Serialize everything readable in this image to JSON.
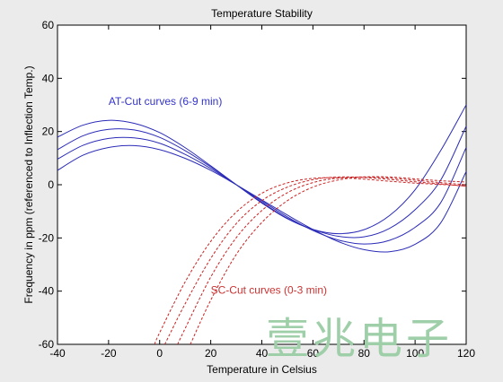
{
  "chart_data": {
    "type": "line",
    "title": "Temperature Stability",
    "xlabel": "Temperature in Celsius",
    "ylabel": "Frequency in ppm (referenced to Inflection Temp.)",
    "xlim": [
      -40,
      120
    ],
    "ylim": [
      -60,
      60
    ],
    "xticks": [
      "-40",
      "-20",
      "0",
      "20",
      "40",
      "60",
      "80",
      "100",
      "120"
    ],
    "yticks": [
      "60",
      "40",
      "20",
      "0",
      "-20",
      "-40",
      "-60"
    ],
    "grid": false,
    "legend": "none",
    "annotations": [
      {
        "text": "AT-Cut curves (6-9 min)",
        "x": -20,
        "y": 30,
        "color": "#3333cc"
      },
      {
        "text": "SC-Cut curves (0-3 min)",
        "x": 20,
        "y": -41,
        "color": "#cc3333"
      }
    ],
    "series": [
      {
        "group": "AT-Cut",
        "color": "#2b2bb8",
        "style": "solid",
        "x": [
          -40,
          -30,
          -20,
          -10,
          0,
          10,
          20,
          30,
          40,
          50,
          60,
          70,
          80,
          90,
          100,
          110,
          120
        ],
        "y": [
          17.9,
          22.4,
          24.2,
          23.1,
          19.6,
          13.9,
          7.1,
          0,
          -6.9,
          -12.8,
          -16.8,
          -18.4,
          -16.9,
          -11.6,
          -1.9,
          12.8,
          30
        ]
      },
      {
        "group": "AT-Cut",
        "color": "#2b2bb8",
        "style": "solid",
        "x": [
          -40,
          -30,
          -20,
          -10,
          0,
          10,
          20,
          30,
          40,
          50,
          60,
          70,
          80,
          90,
          100,
          110,
          120
        ],
        "y": [
          13.2,
          18.4,
          20.8,
          20.6,
          17.8,
          12.8,
          6.7,
          0,
          -6.6,
          -12.6,
          -16.8,
          -19.4,
          -19.6,
          -16.4,
          -9.4,
          1.7,
          22
        ]
      },
      {
        "group": "AT-Cut",
        "color": "#2b2bb8",
        "style": "solid",
        "x": [
          -40,
          -30,
          -20,
          -10,
          0,
          10,
          20,
          30,
          40,
          50,
          60,
          70,
          80,
          90,
          100,
          110,
          120
        ],
        "y": [
          9.6,
          14.8,
          17.4,
          17.6,
          15.6,
          11.4,
          6.1,
          0,
          -6.1,
          -12.1,
          -17.2,
          -20.8,
          -22.3,
          -20.9,
          -16,
          -6.8,
          14
        ]
      },
      {
        "group": "AT-Cut",
        "color": "#2b2bb8",
        "style": "solid",
        "x": [
          -40,
          -30,
          -20,
          -10,
          0,
          10,
          20,
          30,
          40,
          50,
          60,
          70,
          80,
          90,
          100,
          110,
          120
        ],
        "y": [
          5.4,
          11.1,
          14,
          14.7,
          13.2,
          9.9,
          5.4,
          0,
          -5.7,
          -11.4,
          -16.8,
          -21.4,
          -24.4,
          -25.2,
          -22.4,
          -14.4,
          5
        ]
      },
      {
        "group": "SC-Cut",
        "color": "#cc2222",
        "style": "dashed",
        "x": [
          -2,
          0,
          10,
          20,
          30,
          40,
          50,
          60,
          70,
          80,
          90,
          100,
          110,
          120
        ],
        "y": [
          -60,
          -55.6,
          -36.5,
          -21.3,
          -10.3,
          -3.2,
          0.7,
          2.4,
          2.6,
          2.1,
          1.3,
          0.6,
          0.1,
          -0.5
        ]
      },
      {
        "group": "SC-Cut",
        "color": "#cc2222",
        "style": "dashed",
        "x": [
          2,
          10,
          20,
          30,
          40,
          50,
          60,
          70,
          80,
          90,
          100,
          110,
          120
        ],
        "y": [
          -60,
          -44.7,
          -27.7,
          -14.6,
          -6,
          -0.9,
          1.9,
          2.9,
          2.7,
          2,
          1.1,
          0.3,
          -0.5
        ]
      },
      {
        "group": "SC-Cut",
        "color": "#cc2222",
        "style": "dashed",
        "x": [
          7,
          10,
          20,
          30,
          40,
          50,
          60,
          70,
          80,
          90,
          100,
          110,
          120
        ],
        "y": [
          -60,
          -54,
          -34.7,
          -19.9,
          -9.7,
          -3,
          0.8,
          2.5,
          2.9,
          2.5,
          1.7,
          0.8,
          0
        ]
      },
      {
        "group": "SC-Cut",
        "color": "#cc2222",
        "style": "dashed",
        "x": [
          12,
          20,
          30,
          40,
          50,
          60,
          70,
          80,
          90,
          100,
          110,
          120
        ],
        "y": [
          -60,
          -43.4,
          -26.2,
          -14.2,
          -6,
          -0.9,
          1.8,
          2.9,
          2.9,
          2.2,
          1.5,
          1
        ]
      }
    ]
  },
  "watermark": {
    "text": "壹兆电子",
    "color": "#9fcfa9"
  }
}
